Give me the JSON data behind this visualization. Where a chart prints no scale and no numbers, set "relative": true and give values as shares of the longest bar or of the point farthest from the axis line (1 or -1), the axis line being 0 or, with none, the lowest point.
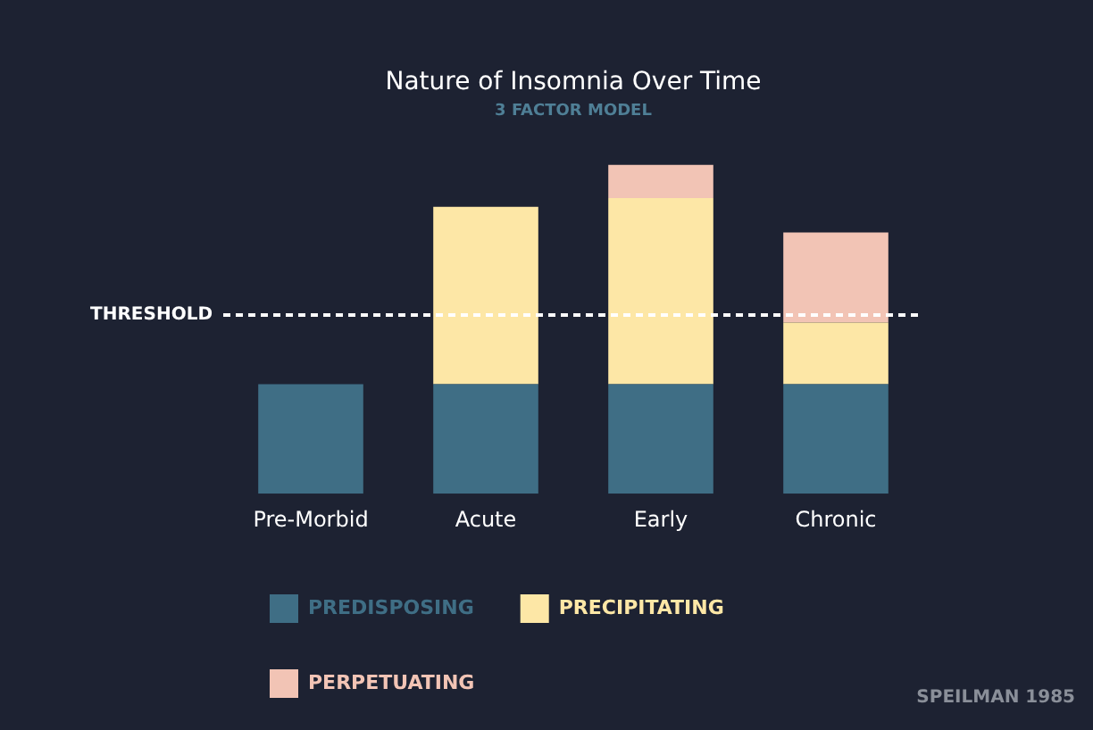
{
  "chart_data": {
    "type": "bar",
    "title": "Nature of Insomnia Over Time",
    "subtitle": "3 FACTOR MODEL",
    "relative": true,
    "stacked": true,
    "categories": [
      "Pre-Morbid",
      "Acute",
      "Early",
      "Chronic"
    ],
    "series": [
      {
        "name": "PREDISPOSING",
        "color": "#3f6e85",
        "values": [
          0.333,
          0.333,
          0.333,
          0.333
        ]
      },
      {
        "name": "PRECIPITATING",
        "color": "#fde7a6",
        "values": [
          null,
          0.539,
          0.566,
          0.187
        ]
      },
      {
        "name": "PERPETUATING",
        "color": "#f2c4b5",
        "values": [
          null,
          null,
          0.101,
          0.274
        ]
      }
    ],
    "ref_lines": [
      {
        "axis": "y",
        "value": 0.543,
        "label": "THRESHOLD",
        "color": "#ffffff",
        "line_style": "dashed"
      }
    ],
    "annotations": [
      "SPEILMAN 1985"
    ],
    "grid": false,
    "legend": "bottom left"
  }
}
